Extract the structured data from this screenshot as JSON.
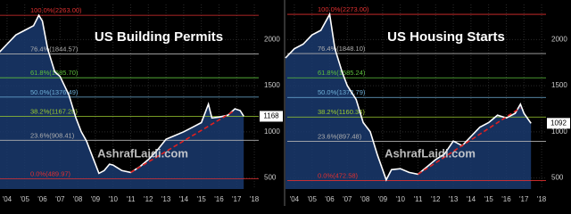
{
  "chart_data": [
    {
      "type": "line",
      "title": "US Building Permits",
      "watermark": "AshrafLaidi.com",
      "color": "#ffffff",
      "area_color": "#1a3a6e",
      "trend_color": "#e02020",
      "grid": true,
      "xlim": [
        2003.6,
        2018.25
      ],
      "ylim": [
        380,
        2380
      ],
      "xticks": [
        {
          "value": 2004,
          "label": "'04"
        },
        {
          "value": 2005,
          "label": "'05"
        },
        {
          "value": 2006,
          "label": "'06"
        },
        {
          "value": 2007,
          "label": "'07"
        },
        {
          "value": 2008,
          "label": "'08"
        },
        {
          "value": 2009,
          "label": "'09"
        },
        {
          "value": 2010,
          "label": "'10"
        },
        {
          "value": 2011,
          "label": "'11"
        },
        {
          "value": 2012,
          "label": "'12"
        },
        {
          "value": 2013,
          "label": "'13"
        },
        {
          "value": 2014,
          "label": "'14"
        },
        {
          "value": 2015,
          "label": "'15"
        },
        {
          "value": 2016,
          "label": "'16"
        },
        {
          "value": 2017,
          "label": "'17"
        },
        {
          "value": 2018,
          "label": "'18"
        }
      ],
      "yticks": [
        500,
        1000,
        1500,
        2000
      ],
      "x": [
        2003.5,
        2004,
        2004.5,
        2005,
        2005.5,
        2005.8,
        2006,
        2006.3,
        2006.7,
        2007,
        2007.5,
        2007.9,
        2008.2,
        2008.5,
        2008.8,
        2009.2,
        2009.5,
        2009.8,
        2010,
        2010.5,
        2011,
        2011.5,
        2012,
        2012.5,
        2013,
        2013.5,
        2014,
        2014.5,
        2015,
        2015.4,
        2015.6,
        2016,
        2016.5,
        2016.9,
        2017.2,
        2017.4
      ],
      "values": [
        1850,
        1950,
        2050,
        2100,
        2150,
        2263,
        2200,
        1900,
        1650,
        1600,
        1400,
        1150,
        1000,
        900,
        750,
        550,
        580,
        650,
        640,
        580,
        560,
        620,
        700,
        800,
        920,
        960,
        1000,
        1050,
        1100,
        1300,
        1150,
        1160,
        1180,
        1250,
        1230,
        1168
      ],
      "last_value": 1168,
      "trend": {
        "x": [
          2011,
          2016.8
        ],
        "values": [
          560,
          1220
        ]
      },
      "fib_levels": [
        {
          "label": "100.0%(2263.00)",
          "value": 2263,
          "color": "#e03030"
        },
        {
          "label": "76.4%(1844.57)",
          "value": 1844.57,
          "color": "#b0b0b0"
        },
        {
          "label": "61.8%(1585.70)",
          "value": 1585.7,
          "color": "#5cbf3c"
        },
        {
          "label": "50.0%(1376.49)",
          "value": 1376.49,
          "color": "#6fb0d8"
        },
        {
          "label": "38.2%(1167.28)",
          "value": 1167.28,
          "color": "#9ccc30"
        },
        {
          "label": "23.6%(908.41)",
          "value": 908.41,
          "color": "#b0b0b0"
        },
        {
          "label": "0.0%(489.97)",
          "value": 489.97,
          "color": "#e03030"
        }
      ]
    },
    {
      "type": "line",
      "title": "US Housing Starts",
      "watermark": "AshrafLaidi.com",
      "color": "#ffffff",
      "area_color": "#1a3a6e",
      "trend_color": "#e02020",
      "grid": true,
      "xlim": [
        2003.6,
        2018.25
      ],
      "ylim": [
        380,
        2380
      ],
      "xticks": [
        {
          "value": 2004,
          "label": "'04"
        },
        {
          "value": 2005,
          "label": "'05"
        },
        {
          "value": 2006,
          "label": "'06"
        },
        {
          "value": 2007,
          "label": "'07"
        },
        {
          "value": 2008,
          "label": "'08"
        },
        {
          "value": 2009,
          "label": "'09"
        },
        {
          "value": 2010,
          "label": "'10"
        },
        {
          "value": 2011,
          "label": "'11"
        },
        {
          "value": 2012,
          "label": "'12"
        },
        {
          "value": 2013,
          "label": "'13"
        },
        {
          "value": 2014,
          "label": "'14"
        },
        {
          "value": 2015,
          "label": "'15"
        },
        {
          "value": 2016,
          "label": "'16"
        },
        {
          "value": 2017,
          "label": "'17"
        },
        {
          "value": 2018,
          "label": "'18"
        }
      ],
      "yticks": [
        500,
        1000,
        1500,
        2000
      ],
      "x": [
        2003.5,
        2004,
        2004.5,
        2005,
        2005.5,
        2006,
        2006.3,
        2006.7,
        2007,
        2007.5,
        2007.9,
        2008.3,
        2008.7,
        2009.2,
        2009.5,
        2010,
        2010.5,
        2011,
        2011.5,
        2012,
        2012.5,
        2013,
        2013.5,
        2014,
        2014.5,
        2015,
        2015.5,
        2016,
        2016.5,
        2016.8,
        2017,
        2017.4
      ],
      "values": [
        1800,
        1900,
        1950,
        2050,
        2100,
        2273,
        1900,
        1650,
        1500,
        1350,
        1100,
        1000,
        750,
        480,
        590,
        600,
        560,
        540,
        620,
        700,
        760,
        900,
        850,
        950,
        1050,
        1100,
        1180,
        1150,
        1200,
        1300,
        1200,
        1092
      ],
      "last_value": 1092,
      "trend": {
        "x": [
          2011,
          2016.8
        ],
        "values": [
          540,
          1260
        ]
      },
      "fib_levels": [
        {
          "label": "100.0%(2273.00)",
          "value": 2273,
          "color": "#e03030"
        },
        {
          "label": "76.4%(1848.10)",
          "value": 1848.1,
          "color": "#b0b0b0"
        },
        {
          "label": "61.8%(1585.24)",
          "value": 1585.24,
          "color": "#5cbf3c"
        },
        {
          "label": "50.0%(1372.79)",
          "value": 1372.79,
          "color": "#6fb0d8"
        },
        {
          "label": "38.2%(1160.34)",
          "value": 1160.34,
          "color": "#9ccc30"
        },
        {
          "label": "23.6%(897.48)",
          "value": 897.48,
          "color": "#b0b0b0"
        },
        {
          "label": "0.0%(472.58)",
          "value": 472.58,
          "color": "#e03030"
        }
      ]
    }
  ]
}
